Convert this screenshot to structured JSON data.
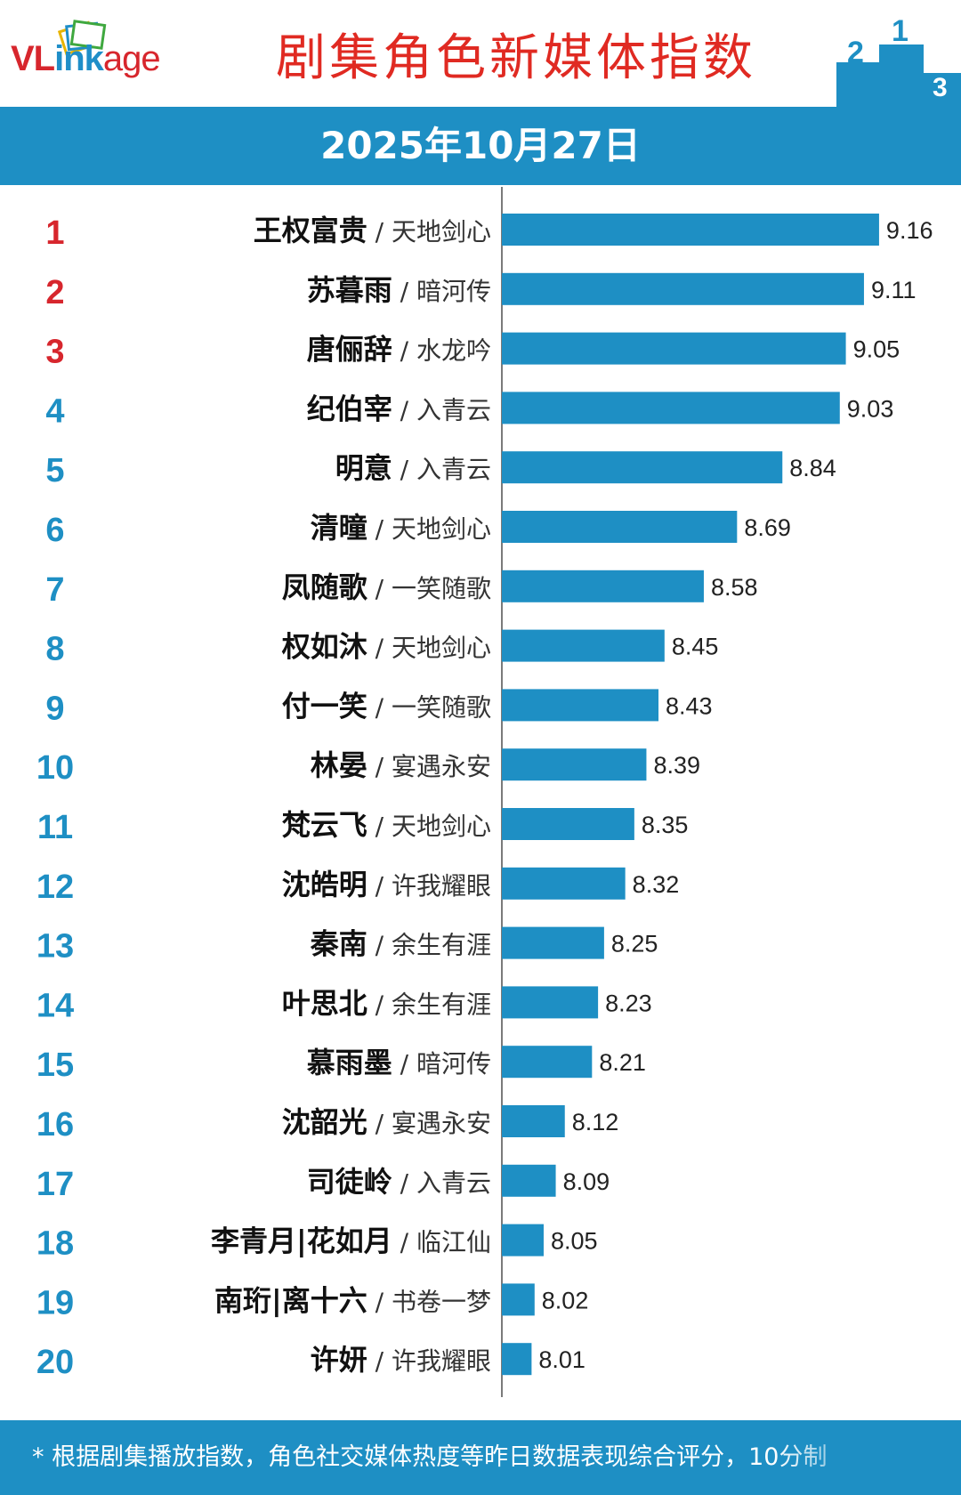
{
  "header": {
    "logo_vl": "VL",
    "logo_ink": "ink",
    "logo_age": "age",
    "title": "剧集角色新媒体指数",
    "podium_numbers": [
      "2",
      "1",
      "3"
    ]
  },
  "date_label": "2025年10月27日",
  "footer": {
    "note": "* 根据剧集播放指数，角色社交媒体热度等昨日数据表现综合评分，10分制"
  },
  "colors": {
    "bar": "#1e8fc4",
    "rank_top3": "#d7262d",
    "rank_other": "#1e8fc4",
    "title": "#e02a22",
    "band": "#1e8fc4"
  },
  "chart_data": {
    "type": "bar",
    "orientation": "horizontal",
    "grid": false,
    "legend": "none",
    "xlim": [
      7.9,
      9.2
    ],
    "items": [
      {
        "rank": "1",
        "role": "王权富贵",
        "drama": "天地剑心",
        "value": 9.16
      },
      {
        "rank": "2",
        "role": "苏暮雨",
        "drama": "暗河传",
        "value": 9.11
      },
      {
        "rank": "3",
        "role": "唐俪辞",
        "drama": "水龙吟",
        "value": 9.05
      },
      {
        "rank": "4",
        "role": "纪伯宰",
        "drama": "入青云",
        "value": 9.03
      },
      {
        "rank": "5",
        "role": "明意",
        "drama": "入青云",
        "value": 8.84
      },
      {
        "rank": "6",
        "role": "清曈",
        "drama": "天地剑心",
        "value": 8.69
      },
      {
        "rank": "7",
        "role": "凤随歌",
        "drama": "一笑随歌",
        "value": 8.58
      },
      {
        "rank": "8",
        "role": "权如沐",
        "drama": "天地剑心",
        "value": 8.45
      },
      {
        "rank": "9",
        "role": "付一笑",
        "drama": "一笑随歌",
        "value": 8.43
      },
      {
        "rank": "10",
        "role": "林晏",
        "drama": "宴遇永安",
        "value": 8.39
      },
      {
        "rank": "11",
        "role": "梵云飞",
        "drama": "天地剑心",
        "value": 8.35
      },
      {
        "rank": "12",
        "role": "沈皓明",
        "drama": "许我耀眼",
        "value": 8.32
      },
      {
        "rank": "13",
        "role": "秦南",
        "drama": "余生有涯",
        "value": 8.25
      },
      {
        "rank": "14",
        "role": "叶思北",
        "drama": "余生有涯",
        "value": 8.23
      },
      {
        "rank": "15",
        "role": "慕雨墨",
        "drama": "暗河传",
        "value": 8.21
      },
      {
        "rank": "16",
        "role": "沈韶光",
        "drama": "宴遇永安",
        "value": 8.12
      },
      {
        "rank": "17",
        "role": "司徒岭",
        "drama": "入青云",
        "value": 8.09
      },
      {
        "rank": "18",
        "role": "李青月|花如月",
        "drama": "临江仙",
        "value": 8.05
      },
      {
        "rank": "19",
        "role": "南珩|离十六",
        "drama": "书卷一梦",
        "value": 8.02
      },
      {
        "rank": "20",
        "role": "许妍",
        "drama": "许我耀眼",
        "value": 8.01
      }
    ]
  }
}
